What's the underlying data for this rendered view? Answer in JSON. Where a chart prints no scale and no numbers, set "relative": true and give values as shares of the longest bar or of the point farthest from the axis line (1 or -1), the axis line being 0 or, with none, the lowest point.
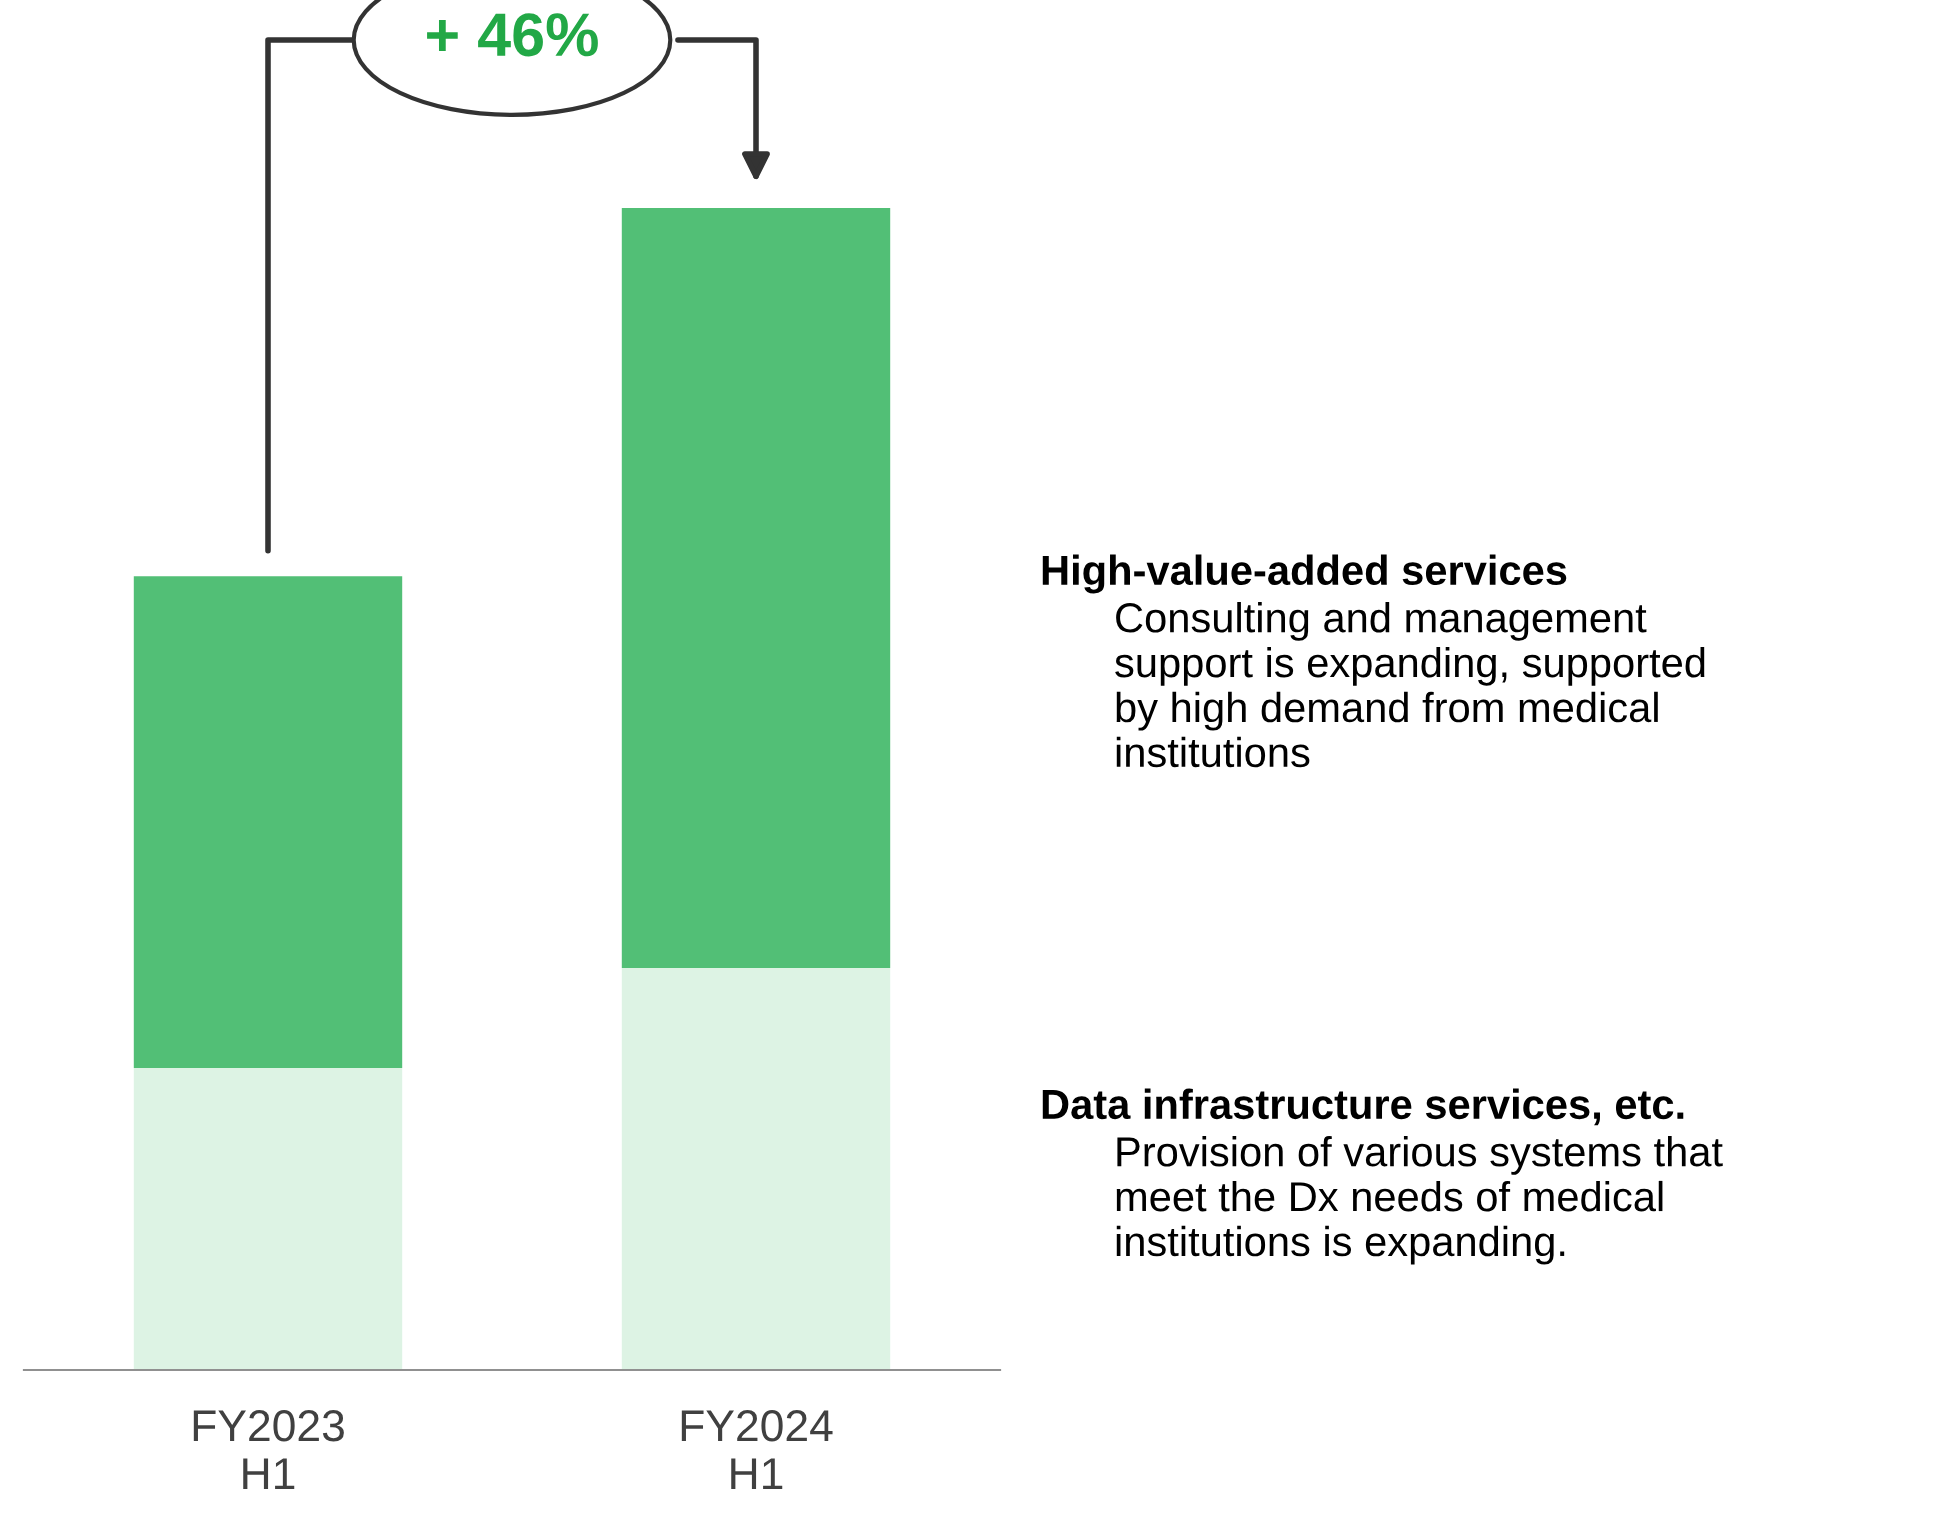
{
  "chart_data": {
    "type": "bar",
    "stacked": true,
    "relative": true,
    "categories": [
      "FY2023\nH1",
      "FY2024\nH1"
    ],
    "series": [
      {
        "name": "Data infrastructure services, etc.",
        "color": "#ddf3e4",
        "values": [
          0.26,
          0.346
        ]
      },
      {
        "name": "High-value-added services",
        "color": "#52bf76",
        "values": [
          0.423,
          0.654
        ]
      }
    ],
    "annotations": [
      "+ 46%",
      "Provision of various systems that\nmeet the Dx needs of medical\ninstitutions is expanding.",
      "Consulting and management\nsupport is expanding, supported\nby high demand from medical\ninstitutions"
    ],
    "grid": false,
    "legend": false
  }
}
